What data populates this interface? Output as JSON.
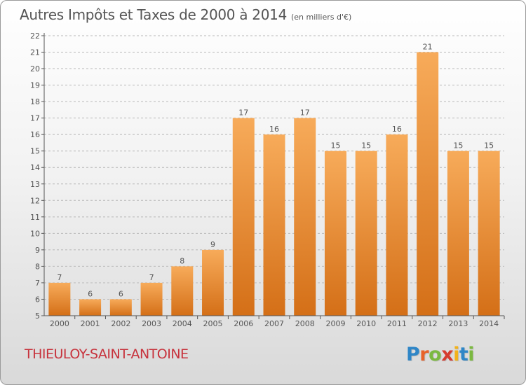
{
  "header": {
    "title": "Autres Impôts et Taxes de 2000 à 2014",
    "unit_label": "(en milliers d'€)"
  },
  "footer": {
    "commune": "THIEULOY-SAINT-ANTOINE",
    "logo_text": "Proxiti"
  },
  "logo_colors": [
    "#2f86c7",
    "#e8622a",
    "#7bb940",
    "#d63c2f",
    "#f2b21a",
    "#2f86c7",
    "#7bb940"
  ],
  "colors": {
    "bar_light": "#f7ab5a",
    "bar_dark": "#d46f17",
    "axis": "#555555",
    "grid": "#b8b8b8",
    "title": "#555555",
    "commune": "#c7323c"
  },
  "chart_data": {
    "type": "bar",
    "title": "Autres Impôts et Taxes de 2000 à 2014",
    "subtitle": "(en milliers d'€)",
    "categories": [
      "2000",
      "2001",
      "2002",
      "2003",
      "2004",
      "2005",
      "2006",
      "2007",
      "2008",
      "2009",
      "2010",
      "2011",
      "2012",
      "2013",
      "2014"
    ],
    "values": [
      7,
      6,
      6,
      7,
      8,
      9,
      17,
      16,
      17,
      15,
      15,
      16,
      21,
      15,
      15
    ],
    "ylim": [
      5,
      22
    ],
    "yticks": [
      5,
      6,
      7,
      8,
      9,
      10,
      11,
      12,
      13,
      14,
      15,
      16,
      17,
      18,
      19,
      20,
      21,
      22
    ],
    "grid": true,
    "legend": "none"
  }
}
